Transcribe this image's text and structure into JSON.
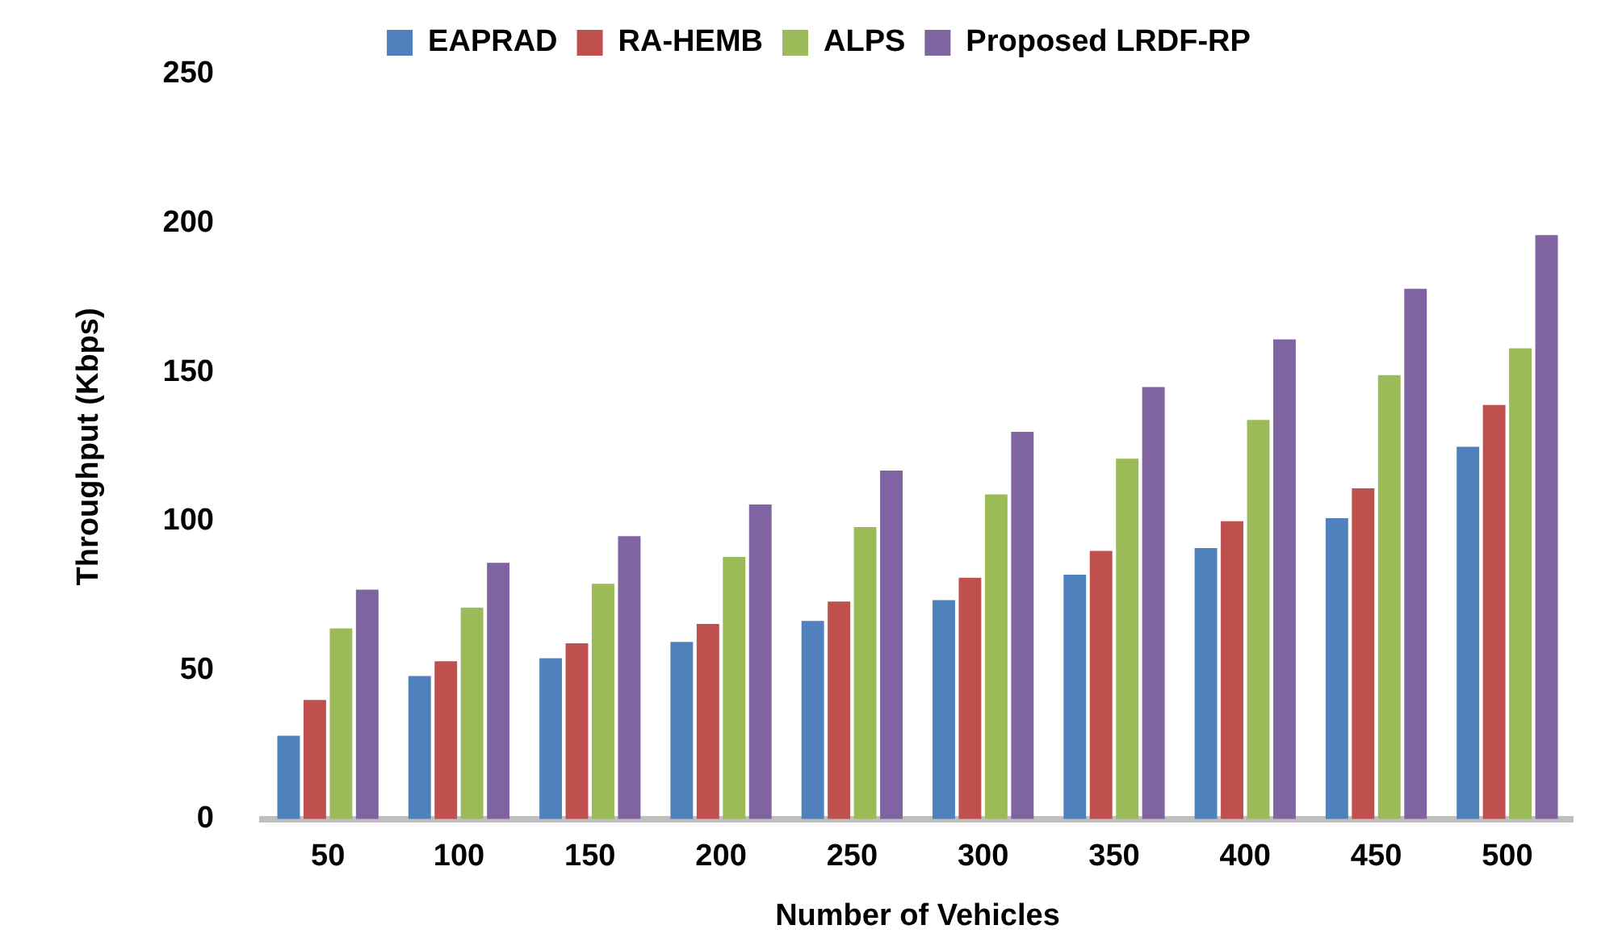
{
  "chart_data": {
    "type": "bar",
    "xlabel": "Number of Vehicles",
    "ylabel": "Throughput (Kbps)",
    "categories": [
      "50",
      "100",
      "150",
      "200",
      "250",
      "300",
      "350",
      "400",
      "450",
      "500"
    ],
    "series": [
      {
        "name": "EAPRAD",
        "color": "#4f81bd",
        "values": [
          28,
          48,
          54,
          59.5,
          66.5,
          73.5,
          82,
          91,
          101,
          125
        ]
      },
      {
        "name": "RA-HEMB",
        "color": "#c0504d",
        "values": [
          40,
          53,
          59,
          65.5,
          73,
          81,
          90,
          100,
          111,
          139
        ]
      },
      {
        "name": "ALPS",
        "color": "#9bbb59",
        "values": [
          64,
          71,
          79,
          88,
          98,
          109,
          121,
          134,
          149,
          158
        ]
      },
      {
        "name": "Proposed LRDF-RP",
        "color": "#8064a2",
        "values": [
          77,
          86,
          95,
          105.6,
          117,
          130,
          145,
          161,
          178,
          196
        ]
      }
    ],
    "ylim": [
      0,
      250
    ],
    "yticks": [
      0,
      50,
      100,
      150,
      200,
      250
    ],
    "grid": false,
    "legend": "top"
  }
}
